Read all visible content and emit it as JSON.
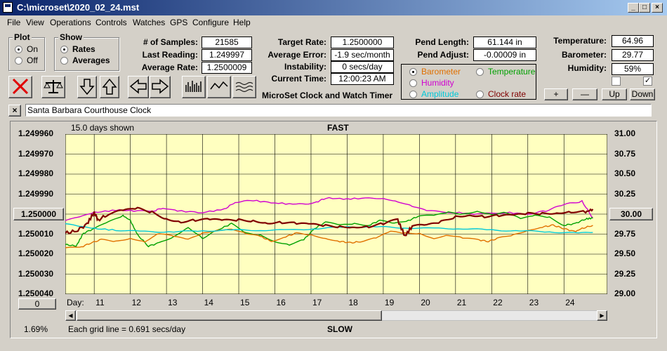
{
  "window": {
    "title": "C:\\microset\\2020_02_24.mst"
  },
  "menu": [
    "File",
    "View",
    "Operations",
    "Controls",
    "Watches",
    "GPS",
    "Configure",
    "Help"
  ],
  "plot_group": {
    "title": "Plot",
    "on": "On",
    "off": "Off",
    "selected": "On"
  },
  "show_group": {
    "title": "Show",
    "rates": "Rates",
    "averages": "Averages",
    "selected": "Rates"
  },
  "stats": {
    "samples_label": "# of Samples:",
    "samples": "21585",
    "last_label": "Last Reading:",
    "last": "1.249997",
    "avg_label": "Average Rate:",
    "avg": "1.2500009",
    "target_label": "Target Rate:",
    "target": "1.2500000",
    "error_label": "Average Error:",
    "error": "-1.9 sec/month",
    "instab_label": "Instability:",
    "instab": "0 secs/day",
    "time_label": "Current Time:",
    "time": "12:00:23 AM",
    "pend_len_label": "Pend Length:",
    "pend_len": "61.144 in",
    "pend_adj_label": "Pend Adjust:",
    "pend_adj": "-0.00009 in",
    "temp_label": "Temperature:",
    "temp": "64.96",
    "baro_label": "Barometer:",
    "baro": "29.77",
    "hum_label": "Humidity:",
    "hum": "59%"
  },
  "app_caption": "MicroSet Clock and Watch Timer",
  "sensor_options": [
    {
      "label": "Barometer",
      "color": "#e07000",
      "selected": true
    },
    {
      "label": "Temperature",
      "color": "#00a000",
      "selected": false
    },
    {
      "label": "Humidity",
      "color": "#d000d0",
      "selected": false
    },
    {
      "label": "Clock rate",
      "color": "#800000",
      "selected": false
    },
    {
      "label": "Amplitude",
      "color": "#00c8d8",
      "selected": false
    }
  ],
  "sensor_buttons": {
    "plus": "+",
    "minus": "—",
    "up": "Up",
    "down": "Down"
  },
  "checkboxes": [
    {
      "checked": false
    },
    {
      "checked": true
    }
  ],
  "watch_name": "Santa Barbara Courthouse Clock",
  "chart_info": {
    "days_shown": "15.0 days shown",
    "fast": "FAST",
    "slow": "SLOW",
    "grid_note": "Each grid line = 0.691 secs/day",
    "percent": "1.69%",
    "day_label": "Day:",
    "left_button": "1.250000",
    "right_button": "30.00",
    "zero_button": "0"
  },
  "colors": {
    "plot_bg": "#ffffc0",
    "clock_rate": "#800000",
    "barometer": "#e07000",
    "temperature": "#00a000",
    "humidity": "#d000d0",
    "amplitude": "#00c8d8"
  },
  "chart_data": {
    "type": "line",
    "x_label": "Day:",
    "x_ticks": [
      11,
      12,
      13,
      14,
      15,
      16,
      17,
      18,
      19,
      20,
      21,
      22,
      23,
      24
    ],
    "xlim": [
      10.2,
      25.2
    ],
    "y_left_ticks": [
      "1.249960",
      "1.249970",
      "1.249980",
      "1.249990",
      "1.250000",
      "1.250010",
      "1.250020",
      "1.250030",
      "1.250040"
    ],
    "y_left_range": [
      1.24996,
      1.25004
    ],
    "y_right_ticks": [
      "31.00",
      "30.75",
      "30.50",
      "30.25",
      "30.00",
      "29.75",
      "29.50",
      "29.25",
      "29.00"
    ],
    "y_right_range": [
      29.0,
      31.0
    ],
    "grid": true,
    "series": [
      {
        "name": "Humidity",
        "axis": "right",
        "color": "#d000d0",
        "points": [
          [
            10.2,
            29.92
          ],
          [
            10.6,
            29.96
          ],
          [
            11.0,
            30.02
          ],
          [
            11.6,
            30.05
          ],
          [
            12.2,
            30.04
          ],
          [
            12.6,
            30.03
          ],
          [
            12.9,
            30.08
          ],
          [
            13.3,
            30.04
          ],
          [
            14.0,
            30.02
          ],
          [
            14.6,
            30.06
          ],
          [
            14.9,
            30.15
          ],
          [
            15.4,
            30.17
          ],
          [
            16.0,
            30.14
          ],
          [
            16.6,
            30.12
          ],
          [
            17.1,
            30.14
          ],
          [
            17.4,
            30.2
          ],
          [
            18.0,
            30.19
          ],
          [
            18.6,
            30.2
          ],
          [
            19.0,
            30.2
          ],
          [
            19.4,
            30.16
          ],
          [
            19.8,
            30.1
          ],
          [
            20.2,
            30.04
          ],
          [
            21.0,
            30.02
          ],
          [
            21.6,
            30.0
          ],
          [
            22.4,
            30.02
          ],
          [
            23.0,
            30.0
          ],
          [
            23.5,
            30.04
          ],
          [
            24.0,
            30.12
          ],
          [
            24.5,
            30.16
          ],
          [
            24.8,
            29.95
          ]
        ]
      },
      {
        "name": "Temperature",
        "axis": "right",
        "color": "#00a000",
        "points": [
          [
            10.2,
            29.62
          ],
          [
            10.5,
            29.6
          ],
          [
            10.7,
            29.76
          ],
          [
            11.0,
            29.82
          ],
          [
            11.4,
            29.9
          ],
          [
            11.8,
            29.98
          ],
          [
            12.0,
            29.92
          ],
          [
            12.2,
            29.74
          ],
          [
            12.5,
            29.6
          ],
          [
            12.8,
            29.64
          ],
          [
            13.2,
            29.72
          ],
          [
            13.6,
            29.84
          ],
          [
            14.0,
            29.7
          ],
          [
            14.5,
            29.82
          ],
          [
            14.8,
            29.88
          ],
          [
            15.2,
            29.76
          ],
          [
            15.6,
            29.74
          ],
          [
            16.0,
            29.66
          ],
          [
            16.4,
            29.62
          ],
          [
            16.8,
            29.68
          ],
          [
            17.1,
            29.82
          ],
          [
            17.4,
            29.9
          ],
          [
            17.8,
            29.86
          ],
          [
            18.2,
            29.88
          ],
          [
            18.6,
            29.86
          ],
          [
            18.9,
            29.92
          ],
          [
            19.3,
            29.88
          ],
          [
            19.7,
            29.92
          ],
          [
            20.0,
            29.98
          ],
          [
            20.4,
            29.98
          ],
          [
            20.8,
            30.02
          ],
          [
            21.2,
            30.0
          ],
          [
            21.6,
            30.04
          ],
          [
            22.0,
            30.0
          ],
          [
            22.4,
            30.02
          ],
          [
            22.8,
            29.94
          ],
          [
            23.2,
            29.98
          ],
          [
            23.6,
            29.96
          ],
          [
            24.0,
            29.86
          ],
          [
            24.3,
            29.88
          ],
          [
            24.6,
            29.94
          ],
          [
            24.8,
            29.95
          ]
        ]
      },
      {
        "name": "Barometer",
        "axis": "right",
        "color": "#e07000",
        "points": [
          [
            10.2,
            29.58
          ],
          [
            10.6,
            29.58
          ],
          [
            10.9,
            29.64
          ],
          [
            11.2,
            29.68
          ],
          [
            11.6,
            29.66
          ],
          [
            12.0,
            29.7
          ],
          [
            12.4,
            29.66
          ],
          [
            12.8,
            29.76
          ],
          [
            13.2,
            29.72
          ],
          [
            13.6,
            29.68
          ],
          [
            14.0,
            29.76
          ],
          [
            14.4,
            29.8
          ],
          [
            14.8,
            29.82
          ],
          [
            15.2,
            29.76
          ],
          [
            15.6,
            29.72
          ],
          [
            15.9,
            29.66
          ],
          [
            16.3,
            29.72
          ],
          [
            16.6,
            29.76
          ],
          [
            17.0,
            29.74
          ],
          [
            17.4,
            29.7
          ],
          [
            17.8,
            29.66
          ],
          [
            18.1,
            29.64
          ],
          [
            18.4,
            29.66
          ],
          [
            18.8,
            29.7
          ],
          [
            19.2,
            29.78
          ],
          [
            19.6,
            29.76
          ],
          [
            20.0,
            29.76
          ],
          [
            20.4,
            29.7
          ],
          [
            20.8,
            29.74
          ],
          [
            21.2,
            29.7
          ],
          [
            21.6,
            29.68
          ],
          [
            21.9,
            29.66
          ],
          [
            22.2,
            29.7
          ],
          [
            22.6,
            29.74
          ],
          [
            23.0,
            29.8
          ],
          [
            23.4,
            29.84
          ],
          [
            23.7,
            29.86
          ],
          [
            24.0,
            29.82
          ],
          [
            24.3,
            29.78
          ],
          [
            24.5,
            29.82
          ],
          [
            24.8,
            29.86
          ]
        ]
      },
      {
        "name": "Amplitude",
        "axis": "right",
        "color": "#00c8d8",
        "points": [
          [
            10.2,
            29.88
          ],
          [
            10.6,
            29.84
          ],
          [
            11.0,
            29.82
          ],
          [
            11.6,
            29.8
          ],
          [
            12.4,
            29.78
          ],
          [
            13.2,
            29.78
          ],
          [
            14.0,
            29.79
          ],
          [
            14.8,
            29.8
          ],
          [
            15.6,
            29.8
          ],
          [
            16.4,
            29.8
          ],
          [
            17.2,
            29.82
          ],
          [
            18.0,
            29.84
          ],
          [
            18.8,
            29.84
          ],
          [
            19.6,
            29.83
          ],
          [
            20.4,
            29.82
          ],
          [
            21.2,
            29.82
          ],
          [
            22.0,
            29.8
          ],
          [
            22.8,
            29.79
          ],
          [
            23.6,
            29.78
          ],
          [
            24.4,
            29.76
          ],
          [
            24.8,
            29.77
          ]
        ]
      },
      {
        "name": "Clock rate",
        "axis": "left",
        "color": "#800000",
        "points": [
          [
            10.2,
            1.2500095
          ],
          [
            10.5,
            1.2500085
          ],
          [
            10.8,
            1.250005
          ],
          [
            11.0,
            1.249999
          ],
          [
            11.1,
            1.250003
          ],
          [
            11.4,
            1.25
          ],
          [
            11.8,
            1.2499985
          ],
          [
            12.2,
            1.2499975
          ],
          [
            12.6,
            1.249999
          ],
          [
            13.0,
            1.250002
          ],
          [
            13.4,
            1.2500035
          ],
          [
            13.8,
            1.250003
          ],
          [
            14.2,
            1.250003
          ],
          [
            14.6,
            1.2500035
          ],
          [
            15.0,
            1.250003
          ],
          [
            15.4,
            1.250003
          ],
          [
            15.8,
            1.250004
          ],
          [
            16.2,
            1.250004
          ],
          [
            16.6,
            1.250005
          ],
          [
            17.0,
            1.2500055
          ],
          [
            17.4,
            1.250006
          ],
          [
            17.8,
            1.250006
          ],
          [
            18.2,
            1.250006
          ],
          [
            18.6,
            1.250006
          ],
          [
            19.0,
            1.250005
          ],
          [
            19.4,
            1.250003
          ],
          [
            19.6,
            1.250011
          ],
          [
            19.8,
            1.250006
          ],
          [
            20.2,
            1.250006
          ],
          [
            20.6,
            1.250004
          ],
          [
            21.0,
            1.250001
          ],
          [
            21.4,
            1.25
          ],
          [
            21.8,
            1.250001
          ],
          [
            22.2,
            1.250001
          ],
          [
            22.6,
            1.250001
          ],
          [
            23.0,
            1.25
          ],
          [
            23.4,
            1.2499995
          ],
          [
            23.8,
            1.249999
          ],
          [
            24.2,
            1.2499985
          ],
          [
            24.6,
            1.249999
          ],
          [
            24.8,
            1.2499975
          ]
        ]
      }
    ]
  }
}
